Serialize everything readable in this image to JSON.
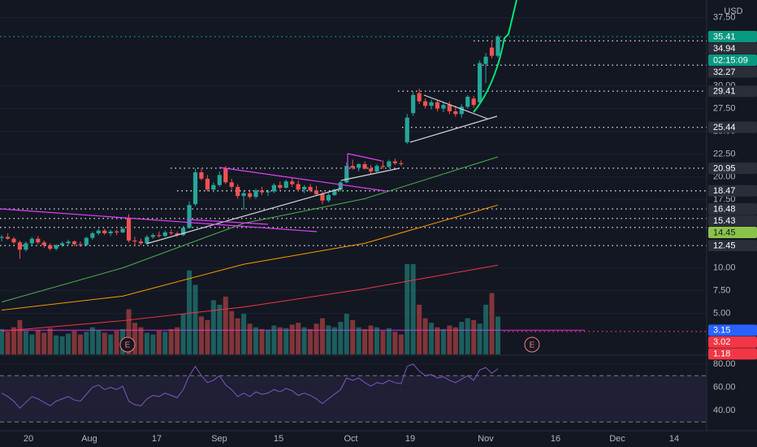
{
  "currency": "USD",
  "chart_data": {
    "type": "candlestick",
    "ylim": [
      0.5,
      39.43
    ],
    "yticks": [
      {
        "value": 37.5,
        "label": "37.50"
      },
      {
        "value": 30,
        "label": "30.00"
      },
      {
        "value": 27.5,
        "label": "27.50"
      },
      {
        "value": 25,
        "label": "25.00"
      },
      {
        "value": 22.5,
        "label": "22.50"
      },
      {
        "value": 20,
        "label": "20.00"
      },
      {
        "value": 17.5,
        "label": "17.50"
      },
      {
        "value": 10,
        "label": "10.00"
      },
      {
        "value": 7.5,
        "label": "7.50"
      },
      {
        "value": 5,
        "label": "5.00"
      }
    ],
    "up_color": "#26a69a",
    "down_color": "#ef5350",
    "candles": [
      [
        13.3,
        13.6,
        12.9,
        13.4
      ],
      [
        13.4,
        13.8,
        13.1,
        13.2
      ],
      [
        13.2,
        13.4,
        12.6,
        12.8
      ],
      [
        12.8,
        13.0,
        11.0,
        12.0
      ],
      [
        12.0,
        12.9,
        11.8,
        12.7
      ],
      [
        12.7,
        13.4,
        12.5,
        13.2
      ],
      [
        13.2,
        13.5,
        12.6,
        12.8
      ],
      [
        12.8,
        13.0,
        12.2,
        12.5
      ],
      [
        12.5,
        12.7,
        11.9,
        12.1
      ],
      [
        12.1,
        12.6,
        11.9,
        12.5
      ],
      [
        12.5,
        12.9,
        12.3,
        12.7
      ],
      [
        12.7,
        13.1,
        12.5,
        12.9
      ],
      [
        12.9,
        13.0,
        12.4,
        12.6
      ],
      [
        12.6,
        12.9,
        12.3,
        12.5
      ],
      [
        12.5,
        13.4,
        12.4,
        13.3
      ],
      [
        13.3,
        14.0,
        13.1,
        13.8
      ],
      [
        13.8,
        14.3,
        13.6,
        14.1
      ],
      [
        14.1,
        14.3,
        13.6,
        13.8
      ],
      [
        13.8,
        14.2,
        13.5,
        14.0
      ],
      [
        14.0,
        14.2,
        13.6,
        13.9
      ],
      [
        13.9,
        14.5,
        13.8,
        14.3
      ],
      [
        15.5,
        15.9,
        12.8,
        13.0
      ],
      [
        13.0,
        13.4,
        12.5,
        12.9
      ],
      [
        12.9,
        13.2,
        12.5,
        12.7
      ],
      [
        12.7,
        13.6,
        12.6,
        13.4
      ],
      [
        13.4,
        13.8,
        13.2,
        13.6
      ],
      [
        13.6,
        14.0,
        13.3,
        13.5
      ],
      [
        13.5,
        14.1,
        13.4,
        13.9
      ],
      [
        13.9,
        14.2,
        13.6,
        13.8
      ],
      [
        13.8,
        14.0,
        13.4,
        13.6
      ],
      [
        13.6,
        14.6,
        13.5,
        14.4
      ],
      [
        14.4,
        17.3,
        14.3,
        16.9
      ],
      [
        17.0,
        20.9,
        16.8,
        20.5
      ],
      [
        20.5,
        20.9,
        19.6,
        19.8
      ],
      [
        19.8,
        20.2,
        18.4,
        18.6
      ],
      [
        18.6,
        19.4,
        18.3,
        19.1
      ],
      [
        19.1,
        20.6,
        18.9,
        20.2
      ],
      [
        20.9,
        21.2,
        19.2,
        19.4
      ],
      [
        19.4,
        19.8,
        18.6,
        18.9
      ],
      [
        18.9,
        19.2,
        17.6,
        17.9
      ],
      [
        17.9,
        18.5,
        16.4,
        18.2
      ],
      [
        18.2,
        18.6,
        17.6,
        17.8
      ],
      [
        17.8,
        18.7,
        17.6,
        18.5
      ],
      [
        18.5,
        18.9,
        18.0,
        18.3
      ],
      [
        18.3,
        18.6,
        17.9,
        18.4
      ],
      [
        18.4,
        19.3,
        18.2,
        19.1
      ],
      [
        19.1,
        19.5,
        18.6,
        18.8
      ],
      [
        18.8,
        19.7,
        18.7,
        19.5
      ],
      [
        19.5,
        19.9,
        18.9,
        19.2
      ],
      [
        19.2,
        19.6,
        18.4,
        18.6
      ],
      [
        18.6,
        19.1,
        18.2,
        18.9
      ],
      [
        18.9,
        19.2,
        18.3,
        18.5
      ],
      [
        18.5,
        19.0,
        17.9,
        18.1
      ],
      [
        18.1,
        18.4,
        17.0,
        17.4
      ],
      [
        17.4,
        18.2,
        17.2,
        18.0
      ],
      [
        18.0,
        18.7,
        17.9,
        18.6
      ],
      [
        18.6,
        19.6,
        18.4,
        19.4
      ],
      [
        19.4,
        21.6,
        19.3,
        21.2
      ],
      [
        21.2,
        21.9,
        20.8,
        21.0
      ],
      [
        21.0,
        21.5,
        20.6,
        21.4
      ],
      [
        21.4,
        21.7,
        20.8,
        20.9
      ],
      [
        20.9,
        21.3,
        20.3,
        20.6
      ],
      [
        20.6,
        21.4,
        20.5,
        21.2
      ],
      [
        21.2,
        21.8,
        20.9,
        21.1
      ],
      [
        21.1,
        21.9,
        21.0,
        21.7
      ],
      [
        21.7,
        22.0,
        21.3,
        21.5
      ],
      [
        21.5,
        21.8,
        21.2,
        21.4
      ],
      [
        23.8,
        26.9,
        23.6,
        26.5
      ],
      [
        27.0,
        29.4,
        26.7,
        29.0
      ],
      [
        29.2,
        29.7,
        28.0,
        28.3
      ],
      [
        28.3,
        28.6,
        27.5,
        27.8
      ],
      [
        27.8,
        28.5,
        27.4,
        28.2
      ],
      [
        28.2,
        28.4,
        27.2,
        27.5
      ],
      [
        27.5,
        28.2,
        27.1,
        27.9
      ],
      [
        27.9,
        28.3,
        26.9,
        27.2
      ],
      [
        27.2,
        27.8,
        26.6,
        26.9
      ],
      [
        26.9,
        28.0,
        26.5,
        27.7
      ],
      [
        27.7,
        29.0,
        27.5,
        28.8
      ],
      [
        28.6,
        28.9,
        27.6,
        27.9
      ],
      [
        28.2,
        32.8,
        28.0,
        32.5
      ],
      [
        32.4,
        33.6,
        30.3,
        33.2
      ],
      [
        34.2,
        35.0,
        33.0,
        33.3
      ],
      [
        33.3,
        35.6,
        33.1,
        35.41
      ]
    ],
    "volume": [
      28,
      25,
      30,
      38,
      26,
      22,
      27,
      24,
      29,
      21,
      20,
      23,
      26,
      22,
      25,
      30,
      27,
      24,
      22,
      26,
      28,
      50,
      35,
      30,
      24,
      22,
      26,
      25,
      28,
      30,
      45,
      93,
      77,
      42,
      38,
      60,
      55,
      64,
      48,
      40,
      45,
      34,
      30,
      28,
      27,
      32,
      30,
      29,
      33,
      35,
      30,
      28,
      34,
      40,
      32,
      30,
      36,
      45,
      38,
      30,
      28,
      32,
      30,
      26,
      29,
      25,
      22,
      100,
      100,
      55,
      40,
      35,
      30,
      28,
      32,
      30,
      36,
      40,
      38,
      34,
      55,
      68,
      42
    ],
    "moving_averages": [
      {
        "color": "#4caf50",
        "x": [
          0,
          20,
          40,
          60,
          82
        ],
        "values": [
          6.25,
          10.0,
          14.9,
          17.6,
          22.2
        ]
      },
      {
        "color": "#ff9800",
        "x": [
          0,
          20,
          40,
          60,
          82
        ],
        "values": [
          5.36,
          6.9,
          10.4,
          12.7,
          16.9
        ]
      },
      {
        "color": "#f23645",
        "x": [
          0,
          20,
          40,
          60,
          82
        ],
        "values": [
          3.04,
          4.2,
          5.7,
          7.7,
          10.3
        ]
      }
    ],
    "price_levels": [
      {
        "value": 35.41,
        "countdown": "02:15:09",
        "bg": "#089981",
        "fg": "#ffffff",
        "line_color": "#089981"
      },
      {
        "value": 34.94,
        "bg": "#2a2e39",
        "fg": "#ffffff",
        "line_color": "#d1d4dc"
      },
      {
        "value": 32.27,
        "bg": "#2a2e39",
        "fg": "#ffffff",
        "line_color": "#d1d4dc"
      },
      {
        "value": 29.41,
        "bg": "#2a2e39",
        "fg": "#ffffff",
        "line_color": "#d1d4dc"
      },
      {
        "value": 25.44,
        "bg": "#2a2e39",
        "fg": "#ffffff",
        "line_color": "#d1d4dc"
      },
      {
        "value": 20.95,
        "bg": "#2a2e39",
        "fg": "#ffffff",
        "line_color": "#d1d4dc"
      },
      {
        "value": 18.47,
        "bg": "#2a2e39",
        "fg": "#ffffff",
        "line_color": "#d1d4dc"
      },
      {
        "value": 16.48,
        "bg": "#2a2e39",
        "fg": "#ffffff",
        "line_color": "#d1d4dc"
      },
      {
        "value": 15.43,
        "bg": "#2a2e39",
        "fg": "#ffffff",
        "line_color": "#d1d4dc"
      },
      {
        "value": 14.45,
        "bg": "#8bc34a",
        "fg": "#131722",
        "line_color": "#d1d4dc"
      },
      {
        "value": 12.45,
        "bg": "#2a2e39",
        "fg": "#ffffff",
        "line_color": "#d1d4dc"
      },
      {
        "value": 3.15,
        "bg": "#2962ff",
        "fg": "#ffffff",
        "line_color": "#9c27b0"
      },
      {
        "value": 3.02,
        "bg": "#f23645",
        "fg": "#ffffff",
        "line_color": "#f23645"
      },
      {
        "value": 1.18,
        "bg": "#f23645",
        "fg": "#ffffff"
      }
    ],
    "earnings": [
      "E",
      "E"
    ],
    "x_labels": [
      "20",
      "Aug",
      "17",
      "Sep",
      "15",
      "Oct",
      "19",
      "Nov",
      "16",
      "Dec",
      "14"
    ],
    "rsi": {
      "color": "#7e57c2",
      "ylim": [
        22.5,
        87
      ],
      "bands": [
        70,
        30
      ],
      "yticks": [
        {
          "value": 80,
          "label": "80.00"
        },
        {
          "value": 60,
          "label": "60.00"
        },
        {
          "value": 40,
          "label": "40.00"
        }
      ],
      "values": [
        55,
        52,
        48,
        42,
        47,
        52,
        50,
        47,
        44,
        48,
        50,
        52,
        49,
        48,
        54,
        60,
        62,
        58,
        60,
        58,
        61,
        48,
        45,
        44,
        50,
        53,
        52,
        55,
        53,
        51,
        58,
        70,
        78,
        70,
        64,
        66,
        70,
        62,
        58,
        52,
        55,
        52,
        56,
        54,
        55,
        58,
        56,
        59,
        57,
        53,
        55,
        53,
        50,
        46,
        50,
        54,
        58,
        68,
        66,
        68,
        64,
        61,
        64,
        63,
        66,
        64,
        63,
        78,
        80,
        74,
        70,
        71,
        68,
        69,
        66,
        64,
        67,
        70,
        66,
        75,
        77,
        72,
        76
      ]
    }
  }
}
